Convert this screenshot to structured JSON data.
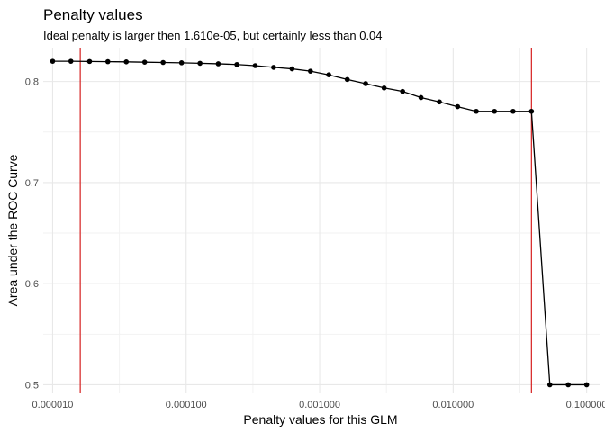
{
  "chart_data": {
    "type": "line",
    "title": "Penalty values",
    "subtitle": "Ideal penalty is larger then 1.610e-05, but certainly less than 0.04",
    "xlabel": "Penalty values for this GLM",
    "ylabel": "Area under the ROC Curve",
    "x_scale": "log10",
    "xlim": [
      8.5e-06,
      0.125
    ],
    "ylim": [
      0.4915,
      0.8335
    ],
    "x_ticks": [
      {
        "value": 1e-05,
        "label": "0.000010"
      },
      {
        "value": 0.0001,
        "label": "0.000100"
      },
      {
        "value": 0.001,
        "label": "0.001000"
      },
      {
        "value": 0.01,
        "label": "0.010000"
      },
      {
        "value": 0.1,
        "label": "0.100000"
      }
    ],
    "y_ticks": [
      {
        "value": 0.5,
        "label": "0.5"
      },
      {
        "value": 0.6,
        "label": "0.6"
      },
      {
        "value": 0.7,
        "label": "0.7"
      },
      {
        "value": 0.8,
        "label": "0.8"
      }
    ],
    "grid": true,
    "series": [
      {
        "color": "#000000",
        "points": [
          {
            "x": 1e-05,
            "y": 0.82
          },
          {
            "x": 1.37e-05,
            "y": 0.82
          },
          {
            "x": 1.89e-05,
            "y": 0.8198
          },
          {
            "x": 2.59e-05,
            "y": 0.8196
          },
          {
            "x": 3.56e-05,
            "y": 0.8194
          },
          {
            "x": 4.89e-05,
            "y": 0.8191
          },
          {
            "x": 6.72e-05,
            "y": 0.8188
          },
          {
            "x": 9.24e-05,
            "y": 0.8185
          },
          {
            "x": 0.000127,
            "y": 0.818
          },
          {
            "x": 0.000174,
            "y": 0.8175
          },
          {
            "x": 0.00024,
            "y": 0.8168
          },
          {
            "x": 0.000329,
            "y": 0.8157
          },
          {
            "x": 0.000452,
            "y": 0.814
          },
          {
            "x": 0.000621,
            "y": 0.8125
          },
          {
            "x": 0.000853,
            "y": 0.8102
          },
          {
            "x": 0.00117,
            "y": 0.8066
          },
          {
            "x": 0.00161,
            "y": 0.802
          },
          {
            "x": 0.00221,
            "y": 0.7979
          },
          {
            "x": 0.00304,
            "y": 0.7936
          },
          {
            "x": 0.00418,
            "y": 0.7902
          },
          {
            "x": 0.00574,
            "y": 0.7841
          },
          {
            "x": 0.00788,
            "y": 0.7798
          },
          {
            "x": 0.0108,
            "y": 0.7751
          },
          {
            "x": 0.0149,
            "y": 0.7705
          },
          {
            "x": 0.0204,
            "y": 0.7705
          },
          {
            "x": 0.0281,
            "y": 0.7705
          },
          {
            "x": 0.0386,
            "y": 0.7705
          },
          {
            "x": 0.053,
            "y": 0.5
          },
          {
            "x": 0.0728,
            "y": 0.5
          },
          {
            "x": 0.1,
            "y": 0.5
          }
        ]
      }
    ],
    "vlines": [
      {
        "x": 1.61e-05,
        "color": "#d62020"
      },
      {
        "x": 0.0386,
        "color": "#d62020"
      }
    ]
  }
}
